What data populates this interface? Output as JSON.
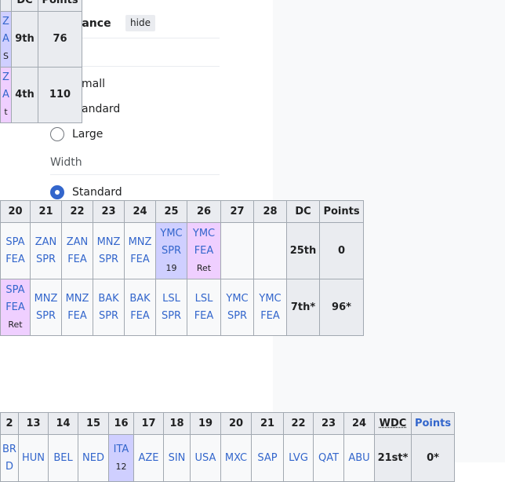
{
  "appearance": {
    "heading": "arance",
    "hide_button": "hide",
    "text_options": [
      "mall",
      "andard",
      "Large"
    ],
    "width_label": "Width",
    "width_option": "Standard"
  },
  "table_top": {
    "header": [
      "DC",
      "Points"
    ],
    "rows": [
      {
        "cells": [
          {
            "lines": [
              "Z",
              "A",
              "S"
            ],
            "color": "#cfcfff"
          }
        ],
        "dc": "9th",
        "points": "76"
      },
      {
        "cells": [
          {
            "lines": [
              "Z",
              "A",
              "t"
            ],
            "color": "#efcfff"
          }
        ],
        "dc": "4th",
        "points": "110"
      }
    ]
  },
  "table_middle": {
    "header": [
      "20",
      "21",
      "22",
      "23",
      "24",
      "25",
      "26",
      "27",
      "28",
      "DC",
      "Points"
    ],
    "rows": [
      {
        "cells": [
          {
            "lines": [
              "SPA",
              "FEA"
            ]
          },
          {
            "lines": [
              "ZAN",
              "SPR"
            ]
          },
          {
            "lines": [
              "ZAN",
              "FEA"
            ]
          },
          {
            "lines": [
              "MNZ",
              "SPR"
            ]
          },
          {
            "lines": [
              "MNZ",
              "FEA"
            ]
          },
          {
            "lines": [
              "YMC",
              "SPR",
              "19"
            ],
            "color": "#cfcfff"
          },
          {
            "lines": [
              "YMC",
              "FEA",
              "Ret"
            ],
            "color": "#efcfff"
          },
          {
            "lines": []
          },
          {
            "lines": []
          }
        ],
        "dc": "25th",
        "points": "0"
      },
      {
        "cells": [
          {
            "lines": [
              "SPA",
              "FEA",
              "Ret"
            ],
            "color": "#efcfff"
          },
          {
            "lines": [
              "MNZ",
              "SPR"
            ]
          },
          {
            "lines": [
              "MNZ",
              "FEA"
            ]
          },
          {
            "lines": [
              "BAK",
              "SPR"
            ]
          },
          {
            "lines": [
              "BAK",
              "FEA"
            ]
          },
          {
            "lines": [
              "LSL",
              "SPR"
            ]
          },
          {
            "lines": [
              "LSL",
              "FEA"
            ]
          },
          {
            "lines": [
              "YMC",
              "SPR"
            ]
          },
          {
            "lines": [
              "YMC",
              "FEA"
            ]
          }
        ],
        "dc": "7th*",
        "points": "96*"
      }
    ]
  },
  "table_bottom": {
    "header": [
      "2",
      "13",
      "14",
      "15",
      "16",
      "17",
      "18",
      "19",
      "20",
      "21",
      "22",
      "23",
      "24",
      "WDC",
      "Points"
    ],
    "rows": [
      {
        "cells": [
          {
            "lines": [
              "BR",
              "D"
            ]
          },
          {
            "lines": [
              "HUN"
            ]
          },
          {
            "lines": [
              "BEL"
            ]
          },
          {
            "lines": [
              "NED"
            ]
          },
          {
            "lines": [
              "ITA",
              "12"
            ],
            "color": "#cfcfff"
          },
          {
            "lines": [
              "AZE"
            ]
          },
          {
            "lines": [
              "SIN"
            ]
          },
          {
            "lines": [
              "USA"
            ]
          },
          {
            "lines": [
              "MXC"
            ]
          },
          {
            "lines": [
              "SAP"
            ]
          },
          {
            "lines": [
              "LVG"
            ]
          },
          {
            "lines": [
              "QAT"
            ]
          },
          {
            "lines": [
              "ABU"
            ]
          }
        ],
        "dc": "21st*",
        "points": "0*"
      }
    ]
  }
}
